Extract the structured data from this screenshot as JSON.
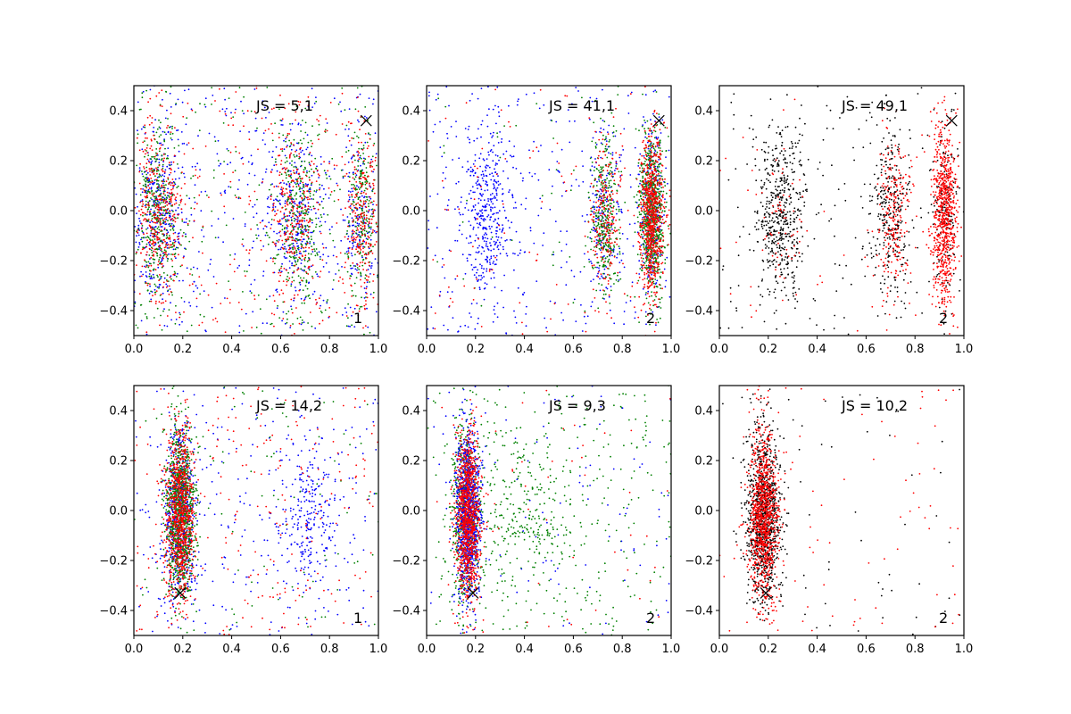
{
  "figure": {
    "width": 1200,
    "height": 800,
    "background": "#ffffff"
  },
  "colors": {
    "blue": "#0000ff",
    "green": "#008000",
    "red": "#ff0000",
    "black": "#000000"
  },
  "chart_data": [
    {
      "type": "scatter",
      "js_label": "JS = 5,1",
      "corner_label": "1",
      "marker": {
        "x": 0.95,
        "y": 0.36,
        "symbol": "x"
      },
      "xlim": [
        0,
        1
      ],
      "ylim": [
        -0.5,
        0.5
      ],
      "x_ticks": [
        "0.0",
        "0.2",
        "0.4",
        "0.6",
        "0.8",
        "1.0"
      ],
      "y_ticks": [
        "-0.4",
        "-0.2",
        "0.0",
        "0.2",
        "0.4"
      ],
      "series": [
        {
          "color": "blue",
          "clusters": [
            {
              "center_x": 0.1,
              "spread_x": 0.05,
              "weight": 0.3
            },
            {
              "center_x": 0.65,
              "spread_x": 0.06,
              "weight": 0.25
            },
            {
              "center_x": 0.92,
              "spread_x": 0.04,
              "weight": 0.15
            },
            {
              "uniform": true,
              "weight": 0.3
            }
          ]
        },
        {
          "color": "green",
          "clusters": [
            {
              "center_x": 0.1,
              "spread_x": 0.04,
              "weight": 0.35
            },
            {
              "center_x": 0.67,
              "spread_x": 0.05,
              "weight": 0.3
            },
            {
              "center_x": 0.93,
              "spread_x": 0.03,
              "weight": 0.2
            },
            {
              "uniform": true,
              "weight": 0.15
            }
          ]
        },
        {
          "color": "red",
          "clusters": [
            {
              "center_x": 0.1,
              "spread_x": 0.05,
              "weight": 0.3
            },
            {
              "center_x": 0.66,
              "spread_x": 0.05,
              "weight": 0.25
            },
            {
              "center_x": 0.93,
              "spread_x": 0.03,
              "weight": 0.2
            },
            {
              "uniform": true,
              "weight": 0.25
            }
          ]
        }
      ]
    },
    {
      "type": "scatter",
      "js_label": "JS = 41,1",
      "corner_label": "2",
      "marker": {
        "x": 0.95,
        "y": 0.36,
        "symbol": "x"
      },
      "xlim": [
        0,
        1
      ],
      "ylim": [
        -0.5,
        0.5
      ],
      "x_ticks": [
        "0.0",
        "0.2",
        "0.4",
        "0.6",
        "0.8",
        "1.0"
      ],
      "y_ticks": [
        "-0.4",
        "-0.2",
        "0.0",
        "0.2",
        "0.4"
      ],
      "series": [
        {
          "color": "blue",
          "clusters": [
            {
              "center_x": 0.25,
              "spread_x": 0.05,
              "weight": 0.35
            },
            {
              "center_x": 0.72,
              "spread_x": 0.04,
              "weight": 0.15
            },
            {
              "center_x": 0.92,
              "spread_x": 0.025,
              "weight": 0.2
            },
            {
              "uniform": true,
              "weight": 0.3
            }
          ]
        },
        {
          "color": "green",
          "clusters": [
            {
              "center_x": 0.73,
              "spread_x": 0.03,
              "weight": 0.3
            },
            {
              "center_x": 0.92,
              "spread_x": 0.025,
              "weight": 0.65
            },
            {
              "uniform": true,
              "weight": 0.05
            }
          ]
        },
        {
          "color": "red",
          "clusters": [
            {
              "center_x": 0.73,
              "spread_x": 0.03,
              "weight": 0.2
            },
            {
              "center_x": 0.92,
              "spread_x": 0.025,
              "weight": 0.7
            },
            {
              "uniform": true,
              "weight": 0.1
            }
          ]
        }
      ]
    },
    {
      "type": "scatter",
      "js_label": "JS = 49,1",
      "corner_label": "2",
      "marker": {
        "x": 0.95,
        "y": 0.36,
        "symbol": "x"
      },
      "xlim": [
        0,
        1
      ],
      "ylim": [
        -0.5,
        0.5
      ],
      "x_ticks": [
        "0.0",
        "0.2",
        "0.4",
        "0.6",
        "0.8",
        "1.0"
      ],
      "y_ticks": [
        "-0.4",
        "-0.2",
        "0.0",
        "0.2",
        "0.4"
      ],
      "series": [
        {
          "color": "black",
          "clusters": [
            {
              "center_x": 0.25,
              "spread_x": 0.05,
              "weight": 0.45
            },
            {
              "center_x": 0.7,
              "spread_x": 0.04,
              "weight": 0.25
            },
            {
              "center_x": 0.92,
              "spread_x": 0.025,
              "weight": 0.15
            },
            {
              "uniform": true,
              "weight": 0.15
            }
          ]
        },
        {
          "color": "red",
          "clusters": [
            {
              "center_x": 0.25,
              "spread_x": 0.05,
              "weight": 0.05
            },
            {
              "center_x": 0.71,
              "spread_x": 0.035,
              "weight": 0.2
            },
            {
              "center_x": 0.92,
              "spread_x": 0.025,
              "weight": 0.7
            },
            {
              "uniform": true,
              "weight": 0.05
            }
          ]
        }
      ]
    },
    {
      "type": "scatter",
      "js_label": "JS = 14,2",
      "corner_label": "1",
      "marker": {
        "x": 0.19,
        "y": -0.33,
        "symbol": "x"
      },
      "xlim": [
        0,
        1
      ],
      "ylim": [
        -0.5,
        0.5
      ],
      "x_ticks": [
        "0.0",
        "0.2",
        "0.4",
        "0.6",
        "0.8",
        "1.0"
      ],
      "y_ticks": [
        "-0.4",
        "-0.2",
        "0.0",
        "0.2",
        "0.4"
      ],
      "series": [
        {
          "color": "blue",
          "clusters": [
            {
              "center_x": 0.19,
              "spread_x": 0.03,
              "weight": 0.55
            },
            {
              "center_x": 0.72,
              "spread_x": 0.07,
              "weight": 0.2
            },
            {
              "uniform": true,
              "weight": 0.25
            }
          ]
        },
        {
          "color": "green",
          "clusters": [
            {
              "center_x": 0.19,
              "spread_x": 0.028,
              "weight": 0.9
            },
            {
              "uniform": true,
              "weight": 0.1
            }
          ]
        },
        {
          "color": "red",
          "clusters": [
            {
              "center_x": 0.19,
              "spread_x": 0.03,
              "weight": 0.75
            },
            {
              "uniform": true,
              "weight": 0.25
            }
          ]
        }
      ]
    },
    {
      "type": "scatter",
      "js_label": "JS = 9,3",
      "corner_label": "2",
      "marker": {
        "x": 0.19,
        "y": -0.33,
        "symbol": "x"
      },
      "xlim": [
        0,
        1
      ],
      "ylim": [
        -0.5,
        0.5
      ],
      "x_ticks": [
        "0.0",
        "0.2",
        "0.4",
        "0.6",
        "0.8",
        "1.0"
      ],
      "y_ticks": [
        "-0.4",
        "-0.2",
        "0.0",
        "0.2",
        "0.4"
      ],
      "series": [
        {
          "color": "green",
          "clusters": [
            {
              "center_x": 0.16,
              "spread_x": 0.03,
              "weight": 0.45
            },
            {
              "center_x": 0.4,
              "spread_x": 0.12,
              "weight": 0.25
            },
            {
              "uniform": true,
              "weight": 0.3
            }
          ]
        },
        {
          "color": "blue",
          "clusters": [
            {
              "center_x": 0.17,
              "spread_x": 0.025,
              "weight": 0.9
            },
            {
              "uniform": true,
              "weight": 0.1
            }
          ]
        },
        {
          "color": "red",
          "clusters": [
            {
              "center_x": 0.17,
              "spread_x": 0.025,
              "weight": 0.95
            },
            {
              "uniform": true,
              "weight": 0.05
            }
          ]
        }
      ]
    },
    {
      "type": "scatter",
      "js_label": "JS = 10,2",
      "corner_label": "2",
      "marker": {
        "x": 0.19,
        "y": -0.33,
        "symbol": "x"
      },
      "xlim": [
        0,
        1
      ],
      "ylim": [
        -0.5,
        0.5
      ],
      "x_ticks": [
        "0.0",
        "0.2",
        "0.4",
        "0.6",
        "0.8",
        "1.0"
      ],
      "y_ticks": [
        "-0.4",
        "-0.2",
        "0.0",
        "0.2",
        "0.4"
      ],
      "series": [
        {
          "color": "black",
          "clusters": [
            {
              "center_x": 0.18,
              "spread_x": 0.035,
              "weight": 0.95
            },
            {
              "uniform": true,
              "weight": 0.05
            }
          ]
        },
        {
          "color": "red",
          "clusters": [
            {
              "center_x": 0.18,
              "spread_x": 0.03,
              "weight": 0.92
            },
            {
              "uniform": true,
              "weight": 0.08
            }
          ]
        }
      ]
    }
  ]
}
